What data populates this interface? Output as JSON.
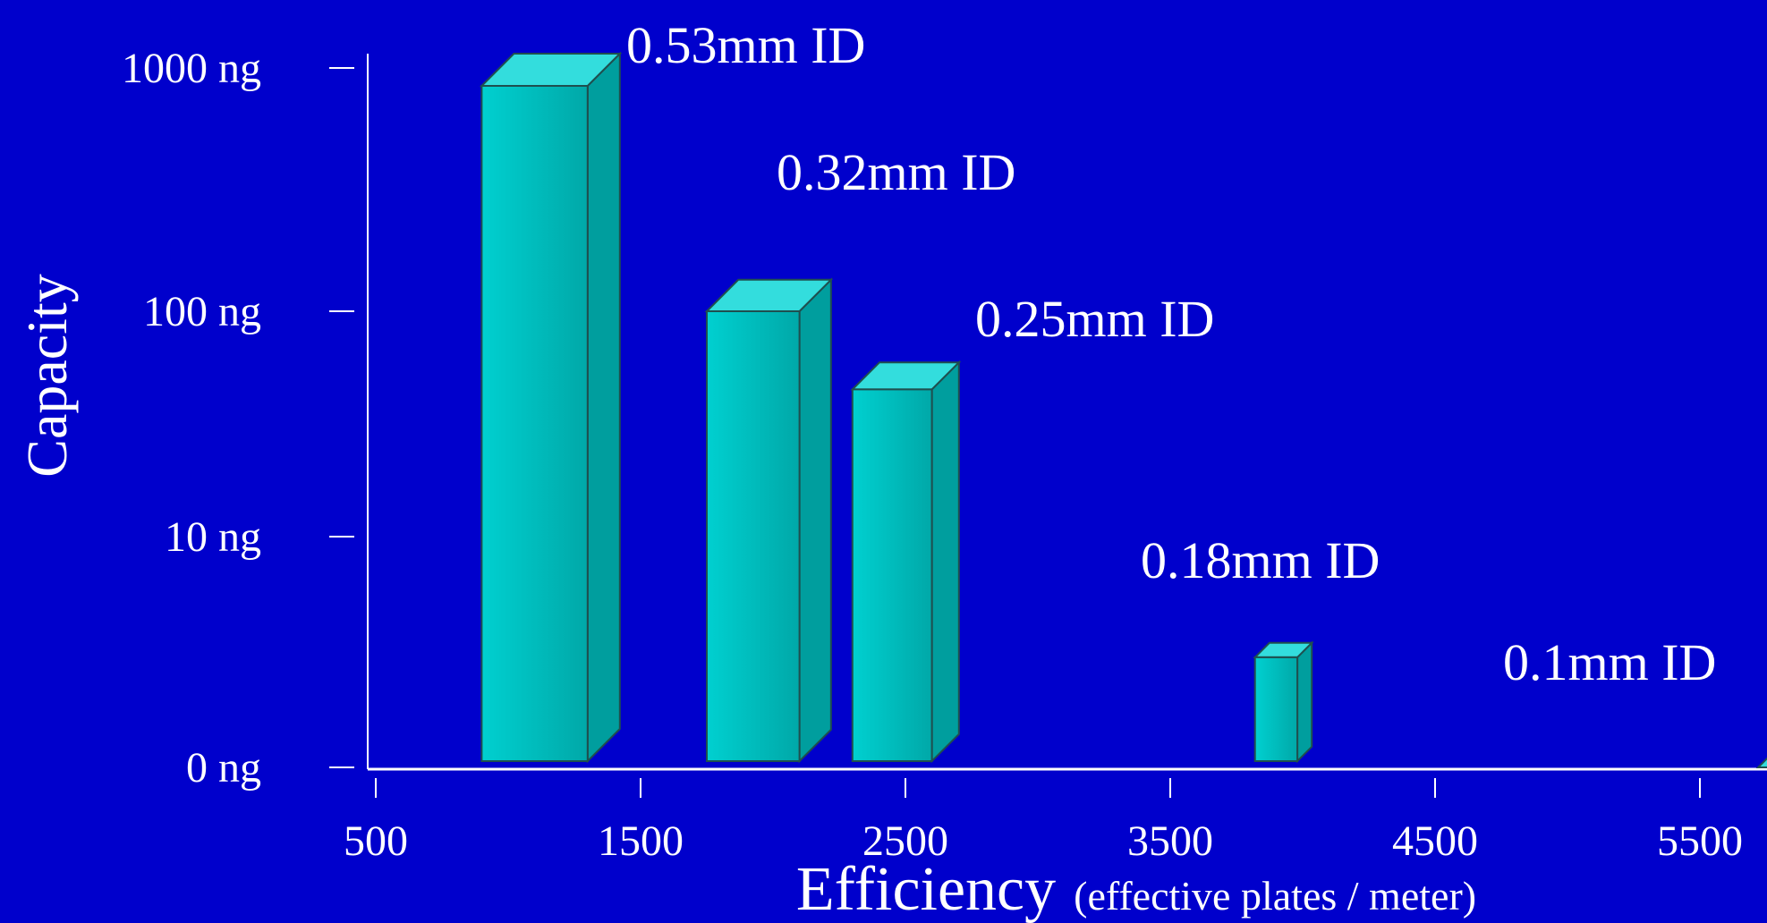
{
  "colors": {
    "background": "#0000CC",
    "bar_front_light": "#00D0D0",
    "bar_front_dark": "#00A8A8",
    "bar_top": "#33DDDD",
    "bar_side": "#009E9E",
    "bar_outline": "#1F4F4F",
    "axis": "#FFFFFF",
    "text": "#FFFFFF"
  },
  "chart_data": {
    "type": "bar",
    "style": "3d-column",
    "xlabel": "Efficiency",
    "xlabel_sub": "(effective plates / meter)",
    "ylabel": "Capacity",
    "x_ticks": [
      "500",
      "1500",
      "2500",
      "3500",
      "4500",
      "5500"
    ],
    "y_ticks": [
      "0 ng",
      "10 ng",
      "100 ng",
      "1000 ng"
    ],
    "bars": [
      {
        "label": "0.53mm ID",
        "x_start": 900,
        "x_end": 1300,
        "capacity_ng": 1000
      },
      {
        "label": "0.32mm ID",
        "x_start": 1750,
        "x_end": 2100,
        "capacity_ng": 100
      },
      {
        "label": "0.25mm ID",
        "x_start": 2300,
        "x_end": 2600,
        "capacity_ng": 45
      },
      {
        "label": "0.18mm ID",
        "x_start": 3820,
        "x_end": 3980,
        "capacity_ng": 3
      },
      {
        "label": "0.1mm ID",
        "x_start": 5720,
        "x_end": 5800,
        "capacity_ng": 1
      }
    ],
    "grid": false,
    "legend": "none"
  }
}
